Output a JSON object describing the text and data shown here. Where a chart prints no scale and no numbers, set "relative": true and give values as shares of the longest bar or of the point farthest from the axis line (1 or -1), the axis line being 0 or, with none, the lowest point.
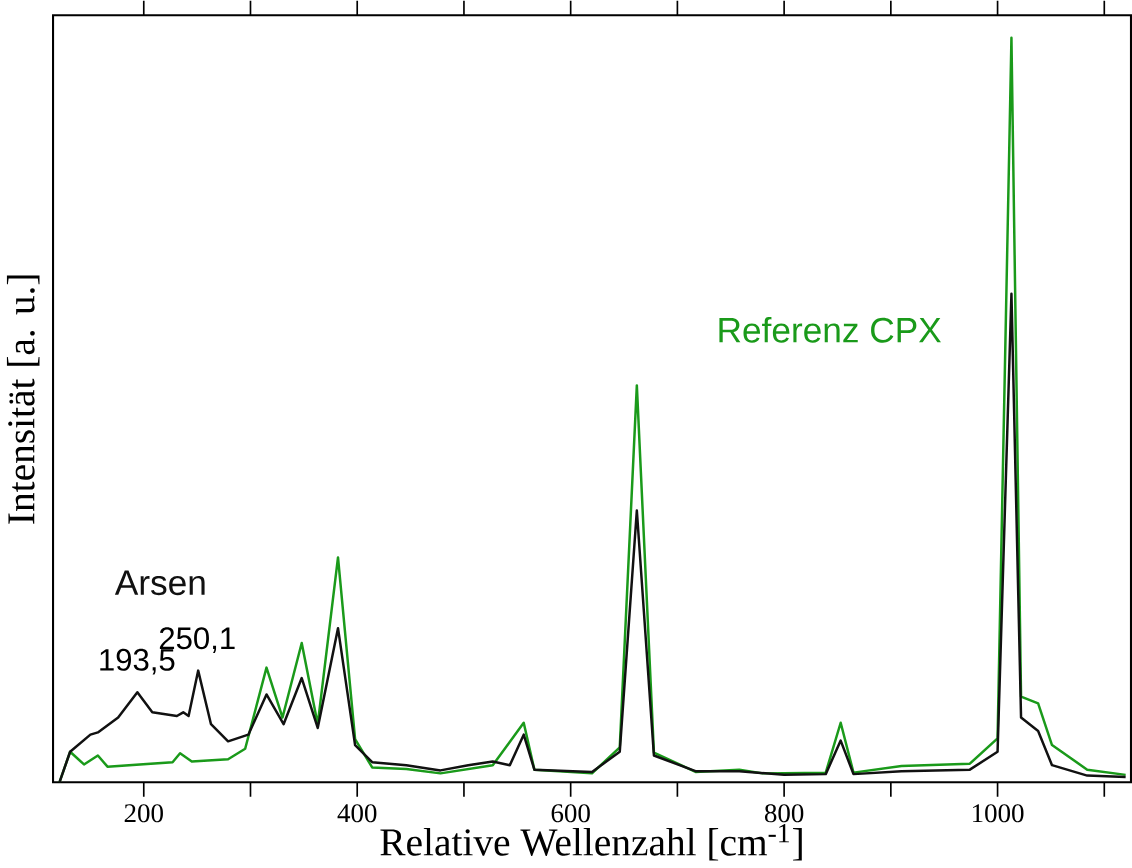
{
  "chart_data": {
    "type": "line",
    "relative": true,
    "xlabel": "Relative Wellenzahl [cm$^{-1}$]",
    "ylabel": "Intensität [a. u.]",
    "xlim": [
      115,
      1125
    ],
    "xticks": [
      200,
      {
        "value": 300,
        "label": null
      },
      400,
      {
        "value": 500,
        "label": null
      },
      600,
      {
        "value": 700,
        "label": null
      },
      800,
      {
        "value": 900,
        "label": null
      },
      1000,
      {
        "value": 1100,
        "label": null
      }
    ],
    "tick_labels": "x",
    "legend": false,
    "grid": false,
    "marker": "none",
    "line_style": "solid",
    "annotations": [
      {
        "text": "193,5",
        "x": 193.5,
        "y": 0.121
      },
      {
        "text": "250,1",
        "x": 250.1,
        "y": 0.15
      }
    ],
    "series": [
      {
        "name": "Referenz CPX",
        "color": "#1a9a1a",
        "x": [
          121,
          131,
          144,
          157,
          166,
          227,
          234,
          245,
          279,
          295,
          315,
          330,
          348,
          363,
          382,
          398,
          414,
          446,
          478,
          527,
          556,
          566,
          620,
          646,
          662,
          678,
          717,
          758,
          780,
          839,
          853,
          865,
          910,
          974,
          1000,
          1013,
          1022,
          1038,
          1051,
          1084,
          1120
        ],
        "values": [
          0,
          0.041,
          0.024,
          0.036,
          0.021,
          0.027,
          0.039,
          0.028,
          0.031,
          0.045,
          0.154,
          0.087,
          0.187,
          0.078,
          0.302,
          0.058,
          0.02,
          0.018,
          0.012,
          0.023,
          0.08,
          0.017,
          0.012,
          0.047,
          0.533,
          0.04,
          0.014,
          0.017,
          0.012,
          0.013,
          0.08,
          0.013,
          0.022,
          0.025,
          0.059,
          1.0,
          0.115,
          0.106,
          0.05,
          0.017,
          0.01
        ]
      },
      {
        "name": "Arsen",
        "color": "#111111",
        "x": [
          121,
          131,
          150,
          157,
          176,
          194,
          208,
          231,
          237,
          242,
          251,
          263,
          279,
          298,
          315,
          331,
          348,
          363,
          382,
          398,
          414,
          446,
          478,
          504,
          527,
          543,
          556,
          566,
          620,
          646,
          662,
          678,
          717,
          758,
          800,
          839,
          853,
          865,
          910,
          974,
          1000,
          1013,
          1022,
          1038,
          1051,
          1084,
          1120
        ],
        "values": [
          0,
          0.041,
          0.064,
          0.067,
          0.087,
          0.121,
          0.094,
          0.089,
          0.094,
          0.089,
          0.15,
          0.078,
          0.055,
          0.064,
          0.118,
          0.078,
          0.14,
          0.073,
          0.207,
          0.05,
          0.027,
          0.023,
          0.016,
          0.023,
          0.028,
          0.023,
          0.064,
          0.017,
          0.014,
          0.041,
          0.365,
          0.036,
          0.015,
          0.015,
          0.01,
          0.011,
          0.056,
          0.011,
          0.015,
          0.017,
          0.041,
          0.656,
          0.087,
          0.069,
          0.023,
          0.009,
          0.007
        ]
      }
    ]
  }
}
